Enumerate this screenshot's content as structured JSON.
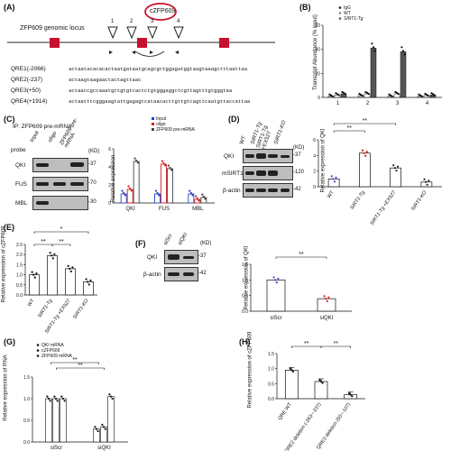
{
  "panels": {
    "A": {
      "label": "(A)",
      "gene_label": "ZFP609 genomic locus",
      "circ_label": "cZFP609",
      "site_numbers": [
        "1",
        "2",
        "3",
        "4"
      ],
      "sequences": [
        {
          "name": "QRE1(-2066)",
          "seq": "actaatacacacactaatgataatgcagcgctggagatggtaagtaaagctttaattaa"
        },
        {
          "name": "QRE2(-237)",
          "seq": "actaagtaagaactactagttaac"
        },
        {
          "name": "QRE3(+50)",
          "seq": "actaaccgccaaatgctgtgtcactctgtgggaggctcgttagtttgtgggtaa"
        },
        {
          "name": "QRE4(+1914)",
          "seq": "actaatttcgggaagtattgagagtcataacacttgttgtcagttcaatgttaccattaa"
        }
      ]
    },
    "B": {
      "label": "(B)",
      "ylabel": "Transcript Abundance (% input)",
      "legend": [
        "IgG",
        "WT",
        "SIRT1-Tg"
      ],
      "xticks": [
        "1",
        "2",
        "3",
        "4"
      ],
      "yticks": [
        "0",
        "20",
        "40",
        "60"
      ]
    },
    "C": {
      "label": "(C)",
      "ip_label": "IP:  ZFP609 pre-mRNA",
      "probe_label": "probe",
      "lane_labels": [
        "Input",
        "oligo",
        "ZFP609 pre-mRNA"
      ],
      "rows": [
        "QKI",
        "FUS",
        "MBL"
      ],
      "kd_unit": "(KD)",
      "kd": [
        "-37",
        "-70",
        "-30"
      ],
      "ylabel": "Relative expression",
      "legend": [
        "Input",
        "oligo",
        "ZFP609 pre-mRNA"
      ],
      "xticks": [
        "QKI",
        "FUS",
        "MBL"
      ],
      "yticks": [
        "0",
        "2",
        "4",
        "6"
      ]
    },
    "D": {
      "label": "(D)",
      "lane_labels": [
        "WT",
        "SIRT1-Tg",
        "SIRT1-Tg +EX527",
        "SIRT1-KO"
      ],
      "rows": [
        "QKI",
        "mSIRT1",
        "β-actin"
      ],
      "kd_unit": "(KD)",
      "kd": [
        "-37",
        "-120",
        "-42"
      ],
      "ylabel": "Relative expression of QKI",
      "xticks": [
        "WT",
        "SIRT1-Tg",
        "SIRT1-Tg +EX527",
        "SIRT1-KO"
      ],
      "yticks": [
        "0",
        "2",
        "4",
        "6"
      ],
      "sig": [
        "**",
        "**"
      ]
    },
    "E": {
      "label": "(E)",
      "ylabel": "Relative expression of cZFP609",
      "xticks": [
        "WT",
        "SIRT1-Tg",
        "SIRT1-Tg +EX527",
        "SIRT1-KO"
      ],
      "yticks": [
        "0.0",
        "0.5",
        "1.0",
        "1.5",
        "2.0",
        "2.5"
      ],
      "sig": [
        "*",
        "**",
        "**"
      ]
    },
    "F": {
      "label": "(F)",
      "lane_labels": [
        "siScr",
        "siQKI"
      ],
      "rows": [
        "QKI",
        "β-actin"
      ],
      "kd_unit": "(KD)",
      "kd": [
        "-37",
        "-42"
      ],
      "ylabel": "Relative expression of QKI",
      "xticks": [
        "siScr",
        "siQKI"
      ],
      "yticks": [
        "0.0",
        "0.5",
        "1.0",
        "1.5"
      ],
      "sig": [
        "**"
      ]
    },
    "G": {
      "label": "(G)",
      "ylabel": "Relative expression of RNA",
      "legend": [
        "QKI mRNA",
        "cZFP609",
        "ZFP609 mRNA"
      ],
      "xticks": [
        "siScr",
        "siQKI"
      ],
      "yticks": [
        "0.0",
        "0.5",
        "1.0",
        "1.5"
      ],
      "sig": [
        "**",
        "**"
      ]
    },
    "H": {
      "label": "(H)",
      "ylabel": "Relative expression of cZFP609",
      "xticks": [
        "QRE WT",
        "QRE2 deletion (-263~-237)",
        "QRE3 deletion (50~-107)"
      ],
      "yticks": [
        "0.0",
        "0.5",
        "1.0",
        "1.5"
      ],
      "sig": [
        "**",
        "**"
      ]
    }
  },
  "colors": {
    "igg": "#cccccc",
    "wt": "#ffffff",
    "tg": "#555555",
    "input": "#2244cc",
    "oligo": "#d82020",
    "pre": "#444444",
    "accent": "#c8102e"
  },
  "chart_data": [
    {
      "panel": "B",
      "type": "bar",
      "categories": [
        "1",
        "2",
        "3",
        "4"
      ],
      "series": [
        {
          "name": "IgG",
          "values": [
            1,
            1.5,
            1,
            1
          ]
        },
        {
          "name": "WT",
          "values": [
            2,
            3,
            3,
            1.5
          ]
        },
        {
          "name": "SIRT1-Tg",
          "values": [
            3,
            41,
            38,
            2
          ]
        }
      ],
      "ylabel": "Transcript Abundance (% input)",
      "ylim": [
        0,
        60
      ]
    },
    {
      "panel": "C",
      "type": "bar",
      "categories": [
        "QKI",
        "FUS",
        "MBL"
      ],
      "series": [
        {
          "name": "Input",
          "values": [
            1,
            1,
            1
          ]
        },
        {
          "name": "oligo",
          "values": [
            1.5,
            4.3,
            0.4
          ]
        },
        {
          "name": "ZFP609 pre-mRNA",
          "values": [
            4.6,
            3.8,
            0.6
          ]
        }
      ],
      "ylabel": "Relative expression",
      "ylim": [
        0,
        6
      ]
    },
    {
      "panel": "D",
      "type": "bar",
      "categories": [
        "WT",
        "SIRT1-Tg",
        "SIRT1-Tg +EX527",
        "SIRT1-KO"
      ],
      "values": [
        1.0,
        4.3,
        2.4,
        0.6
      ],
      "ylabel": "Relative expression of QKI",
      "ylim": [
        0,
        6
      ]
    },
    {
      "panel": "E",
      "type": "bar",
      "categories": [
        "WT",
        "SIRT1-Tg",
        "SIRT1-Tg +EX527",
        "SIRT1-KO"
      ],
      "values": [
        1.0,
        1.95,
        1.3,
        0.65
      ],
      "ylabel": "Relative expression of cZFP609",
      "ylim": [
        0,
        2.5
      ]
    },
    {
      "panel": "F",
      "type": "bar",
      "categories": [
        "siScr",
        "siQKI"
      ],
      "values": [
        1.0,
        0.4
      ],
      "ylabel": "Relative expression of QKI",
      "ylim": [
        0,
        1.5
      ]
    },
    {
      "panel": "G",
      "type": "bar",
      "categories": [
        "siScr",
        "siQKI"
      ],
      "series": [
        {
          "name": "QKI mRNA",
          "values": [
            1.0,
            0.3
          ]
        },
        {
          "name": "cZFP609",
          "values": [
            1.0,
            0.35
          ]
        },
        {
          "name": "ZFP609 mRNA",
          "values": [
            1.0,
            1.05
          ]
        }
      ],
      "ylabel": "Relative expression of RNA",
      "ylim": [
        0,
        1.5
      ]
    },
    {
      "panel": "H",
      "type": "bar",
      "categories": [
        "QRE WT",
        "QRE2 deletion (-263~-237)",
        "QRE3 deletion (50~-107)"
      ],
      "values": [
        0.95,
        0.57,
        0.13
      ],
      "ylabel": "Relative expression of cZFP609",
      "ylim": [
        0,
        1.5
      ]
    }
  ]
}
